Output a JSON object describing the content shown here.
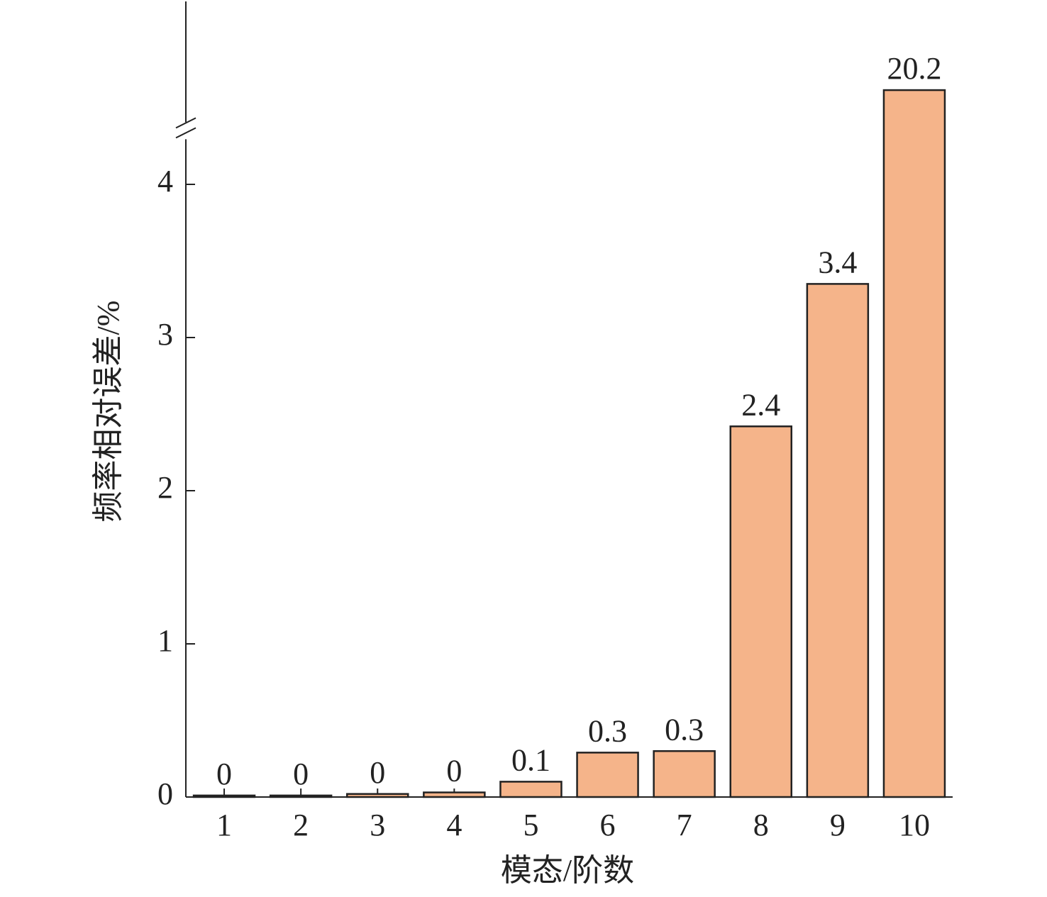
{
  "chart_data": {
    "type": "bar",
    "x_label": "模态/阶数",
    "y_label": "频率相对误差/%",
    "categories": [
      "1",
      "2",
      "3",
      "4",
      "5",
      "6",
      "7",
      "8",
      "9",
      "10"
    ],
    "values": [
      0.01,
      0.01,
      0.02,
      0.03,
      0.1,
      0.29,
      0.3,
      2.42,
      3.35,
      20.2
    ],
    "value_labels": [
      "0",
      "0",
      "0",
      "0",
      "0.1",
      "0.3",
      "0.3",
      "2.4",
      "3.4",
      "20.2"
    ],
    "color": "#f5b48a",
    "ylim": [
      0,
      25
    ],
    "yticks": [
      0,
      1,
      2,
      3,
      4
    ],
    "ybreak": [
      4.35,
      18
    ]
  }
}
